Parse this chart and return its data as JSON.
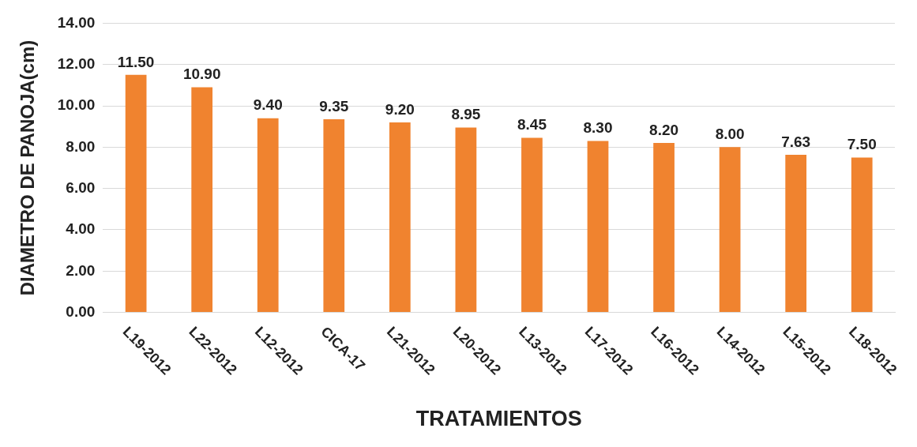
{
  "chart_data": {
    "type": "bar",
    "xlabel": "TRATAMIENTOS",
    "ylabel": "DIAMETRO DE PANOJA(cm)",
    "categories": [
      "L19-2012",
      "L22-2012",
      "L12-2012",
      "CICA-17",
      "L21-2012",
      "L20-2012",
      "L13-2012",
      "L17-2012",
      "L16-2012",
      "L14-2012",
      "L15-2012",
      "L18-2012"
    ],
    "values": [
      11.5,
      10.9,
      9.4,
      9.35,
      9.2,
      8.95,
      8.45,
      8.3,
      8.2,
      8.0,
      7.63,
      7.5
    ],
    "value_labels": [
      "11.50",
      "10.90",
      "9.40",
      "9.35",
      "9.20",
      "8.95",
      "8.45",
      "8.30",
      "8.20",
      "8.00",
      "7.63",
      "7.50"
    ],
    "color": "#f0832f",
    "ylim": [
      0,
      14
    ],
    "yticks": [
      {
        "value": 0,
        "label": "0.00"
      },
      {
        "value": 2,
        "label": "2.00"
      },
      {
        "value": 4,
        "label": "4.00"
      },
      {
        "value": 6,
        "label": "6.00"
      },
      {
        "value": 8,
        "label": "8.00"
      },
      {
        "value": 10,
        "label": "10.00"
      },
      {
        "value": 12,
        "label": "12.00"
      },
      {
        "value": 14,
        "label": "14.00"
      }
    ],
    "grid": "y"
  }
}
